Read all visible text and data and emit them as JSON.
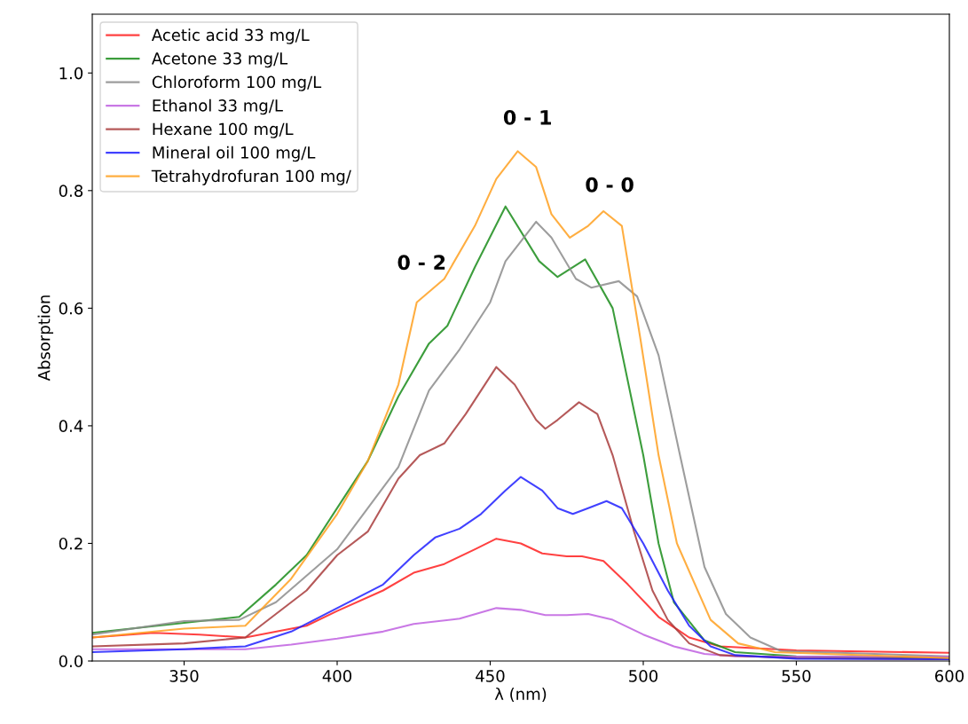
{
  "chart_data": {
    "type": "line",
    "xlabel": "λ (nm)",
    "ylabel": "Absorption",
    "xlim": [
      320,
      600
    ],
    "ylim": [
      0,
      1.1
    ],
    "xticks": [
      350,
      400,
      450,
      500,
      550,
      600
    ],
    "yticks": [
      {
        "value": 0,
        "label": "0.0"
      },
      0.2,
      0.4,
      0.6,
      0.8,
      {
        "value": 1,
        "label": "1.0"
      }
    ],
    "grid": false,
    "legend": "top left",
    "marker": "none",
    "line_style": "solid",
    "series": [
      {
        "name": "Acetic acid 33 mg/L",
        "color": "#ff2020",
        "x": [
          320,
          340,
          355,
          370,
          390,
          400,
          415,
          425,
          435,
          445,
          452,
          460,
          467,
          475,
          480,
          487,
          495,
          505,
          515,
          525,
          550,
          600
        ],
        "values": [
          0.04,
          0.048,
          0.045,
          0.04,
          0.06,
          0.085,
          0.12,
          0.15,
          0.165,
          0.19,
          0.208,
          0.2,
          0.183,
          0.178,
          0.178,
          0.17,
          0.13,
          0.075,
          0.04,
          0.025,
          0.018,
          0.014
        ]
      },
      {
        "name": "Acetone 33 mg/L",
        "color": "#1a8c1a",
        "x": [
          320,
          350,
          368,
          380,
          390,
          400,
          410,
          420,
          430,
          436,
          445,
          455,
          466,
          472,
          481,
          490,
          500,
          505,
          510,
          520,
          530,
          550,
          600
        ],
        "values": [
          0.048,
          0.065,
          0.075,
          0.13,
          0.18,
          0.26,
          0.34,
          0.45,
          0.54,
          0.57,
          0.67,
          0.773,
          0.68,
          0.653,
          0.683,
          0.6,
          0.35,
          0.2,
          0.1,
          0.035,
          0.015,
          0.008,
          0.005
        ]
      },
      {
        "name": "Chloroform 100 mg/L",
        "color": "#8c8c8c",
        "x": [
          320,
          350,
          368,
          380,
          400,
          420,
          430,
          440,
          450,
          455,
          465,
          470,
          478,
          483,
          492,
          498,
          505,
          512,
          520,
          527,
          535,
          545,
          600
        ],
        "values": [
          0.045,
          0.068,
          0.07,
          0.1,
          0.19,
          0.33,
          0.46,
          0.53,
          0.61,
          0.68,
          0.747,
          0.72,
          0.65,
          0.635,
          0.646,
          0.62,
          0.52,
          0.35,
          0.16,
          0.08,
          0.04,
          0.017,
          0.008
        ]
      },
      {
        "name": "Ethanol 33 mg/L",
        "color": "#c060e0",
        "x": [
          320,
          350,
          370,
          385,
          400,
          415,
          425,
          440,
          452,
          460,
          468,
          475,
          482,
          490,
          500,
          510,
          520,
          530,
          600
        ],
        "values": [
          0.02,
          0.02,
          0.02,
          0.028,
          0.038,
          0.05,
          0.063,
          0.072,
          0.09,
          0.087,
          0.078,
          0.078,
          0.08,
          0.07,
          0.045,
          0.025,
          0.012,
          0.008,
          0.007
        ]
      },
      {
        "name": "Hexane 100 mg/L",
        "color": "#a83c3c",
        "x": [
          320,
          350,
          370,
          390,
          400,
          410,
          420,
          427,
          435,
          442,
          452,
          458,
          465,
          468,
          472,
          479,
          485,
          490,
          497,
          503,
          508,
          515,
          525,
          550,
          600
        ],
        "values": [
          0.025,
          0.03,
          0.04,
          0.12,
          0.18,
          0.22,
          0.31,
          0.35,
          0.37,
          0.42,
          0.5,
          0.47,
          0.41,
          0.395,
          0.41,
          0.44,
          0.42,
          0.35,
          0.22,
          0.12,
          0.07,
          0.03,
          0.01,
          0.005,
          0.003
        ]
      },
      {
        "name": "Mineral oil 100 mg/L",
        "color": "#2020ff",
        "x": [
          320,
          350,
          370,
          385,
          400,
          415,
          425,
          432,
          440,
          447,
          455,
          460,
          467,
          472,
          477,
          482,
          488,
          493,
          500,
          508,
          515,
          522,
          530,
          550,
          600
        ],
        "values": [
          0.015,
          0.02,
          0.025,
          0.05,
          0.09,
          0.13,
          0.18,
          0.21,
          0.225,
          0.25,
          0.29,
          0.313,
          0.29,
          0.26,
          0.25,
          0.26,
          0.272,
          0.26,
          0.2,
          0.12,
          0.06,
          0.025,
          0.01,
          0.004,
          0.003
        ]
      },
      {
        "name": "Tetrahydrofuran 100 mg/",
        "color": "#ffa020",
        "x": [
          320,
          350,
          370,
          385,
          400,
          410,
          420,
          426,
          435,
          445,
          452,
          459,
          465,
          470,
          476,
          482,
          487,
          493,
          499,
          505,
          511,
          522,
          531,
          543,
          600
        ],
        "values": [
          0.04,
          0.055,
          0.06,
          0.14,
          0.25,
          0.34,
          0.47,
          0.61,
          0.65,
          0.74,
          0.82,
          0.867,
          0.84,
          0.76,
          0.72,
          0.74,
          0.765,
          0.74,
          0.55,
          0.35,
          0.2,
          0.07,
          0.03,
          0.015,
          0.005
        ]
      }
    ],
    "annotations": [
      {
        "text": "0 - 2",
        "x": 426,
        "y": 0.61
      },
      {
        "text": "0 - 1",
        "x": 459,
        "y": 0.867
      },
      {
        "text": "0 - 0",
        "x": 487,
        "y": 0.765
      }
    ]
  }
}
